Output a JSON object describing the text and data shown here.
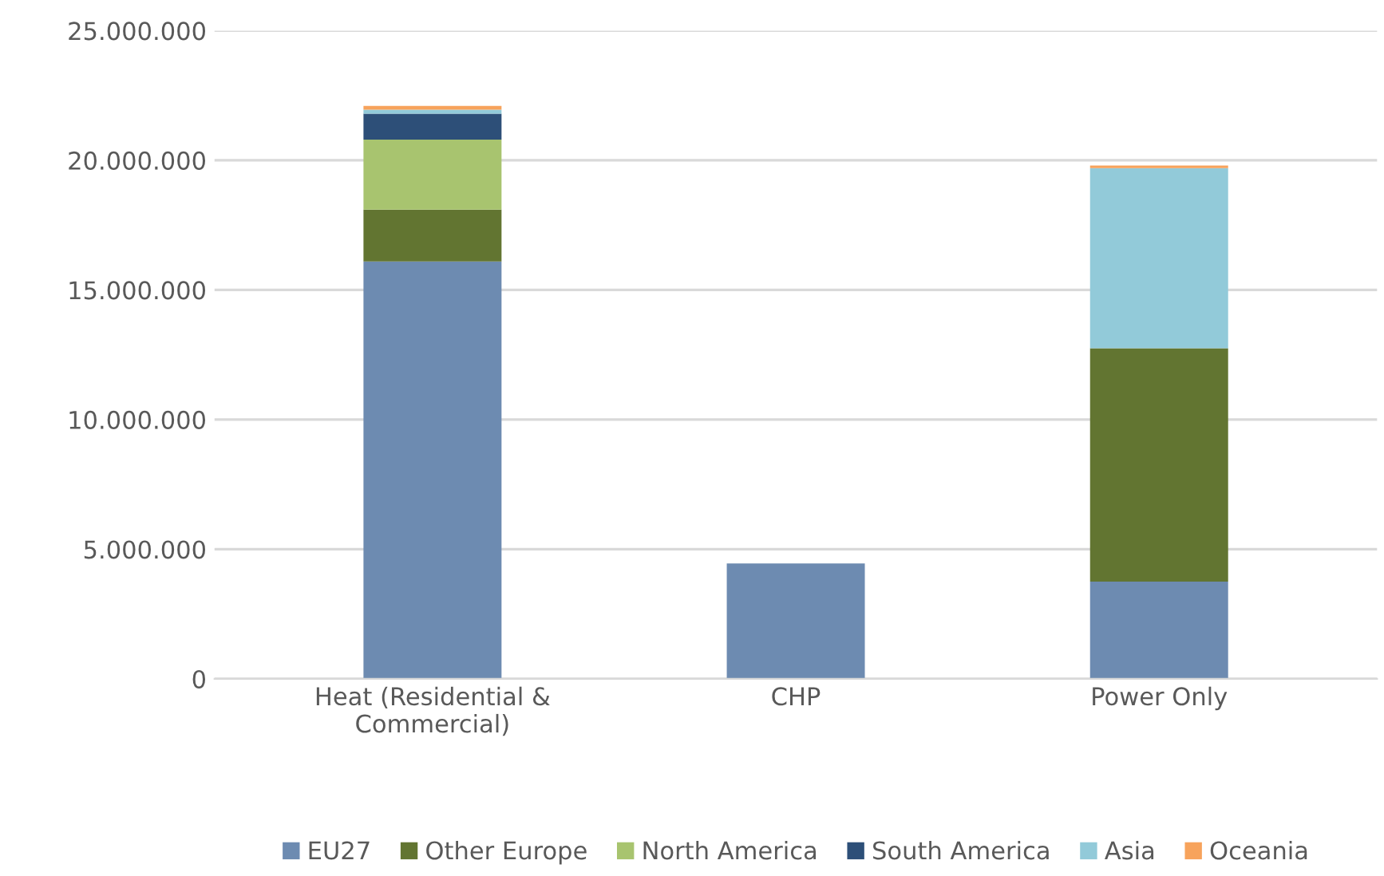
{
  "chart_data": {
    "type": "bar",
    "stacked": true,
    "categories": [
      "Heat (Residential &\nCommercial)",
      "CHP",
      "Power Only"
    ],
    "series": [
      {
        "name": "EU27",
        "color": "#6d8bb1",
        "values": [
          16100000,
          4450000,
          3750000
        ]
      },
      {
        "name": "Other Europe",
        "color": "#627531",
        "values": [
          2000000,
          0,
          9000000
        ]
      },
      {
        "name": "North America",
        "color": "#a8c46f",
        "values": [
          2700000,
          0,
          0
        ]
      },
      {
        "name": "South America",
        "color": "#2d4f78",
        "values": [
          1000000,
          0,
          0
        ]
      },
      {
        "name": "Asia",
        "color": "#92cad9",
        "values": [
          150000,
          0,
          6950000
        ]
      },
      {
        "name": "Oceania",
        "color": "#f7a35c",
        "values": [
          150000,
          0,
          100000
        ]
      }
    ],
    "ylim": [
      0,
      25000000
    ],
    "yticks": [
      {
        "value": 0,
        "label": "0"
      },
      {
        "value": 5000000,
        "label": "5.000.000"
      },
      {
        "value": 10000000,
        "label": "10.000.000"
      },
      {
        "value": 15000000,
        "label": "15.000.000"
      },
      {
        "value": 20000000,
        "label": "20.000.000"
      },
      {
        "value": 25000000,
        "label": "25.000.000"
      }
    ],
    "grid": "y",
    "legend": "bottom"
  }
}
